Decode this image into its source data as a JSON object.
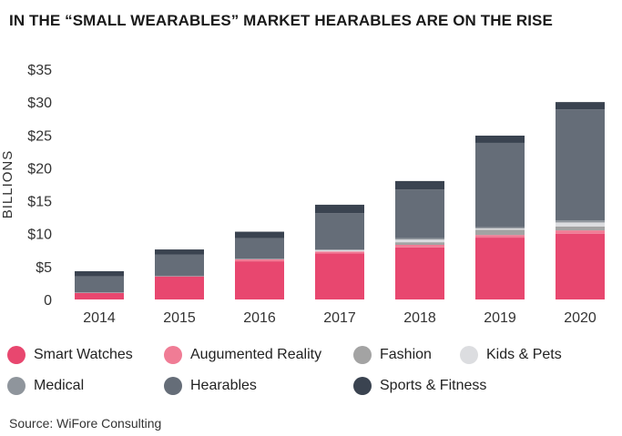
{
  "title": "IN THE “SMALL WEARABLES” MARKET HEARABLES ARE ON THE RISE",
  "source": "Source: WiFore Consulting",
  "chart_data": {
    "type": "bar",
    "stacked": true,
    "ylabel": "BILLIONS",
    "xlabel": "",
    "ylim": [
      0,
      35
    ],
    "yticks": [
      0,
      5,
      10,
      15,
      20,
      25,
      30,
      35
    ],
    "ytick_labels": [
      "0",
      "$5",
      "$10",
      "$15",
      "$20",
      "$25",
      "$30",
      "$35"
    ],
    "categories": [
      "2014",
      "2015",
      "2016",
      "2017",
      "2018",
      "2019",
      "2020"
    ],
    "grid": false,
    "legend_position": "bottom",
    "series": [
      {
        "name": "Smart Watches",
        "color": "#e8476f",
        "values": [
          1.0,
          3.5,
          5.8,
          7.0,
          7.9,
          9.4,
          10.0
        ]
      },
      {
        "name": "Augumented Reality",
        "color": "#f07c95",
        "values": [
          0.0,
          0.0,
          0.3,
          0.3,
          0.4,
          0.4,
          0.5
        ]
      },
      {
        "name": "Fashion",
        "color": "#a3a3a3",
        "values": [
          0.0,
          0.0,
          0.0,
          0.0,
          0.4,
          0.8,
          0.6
        ]
      },
      {
        "name": "Kids & Pets",
        "color": "#dcdde0",
        "values": [
          0.0,
          0.0,
          0.0,
          0.2,
          0.4,
          0.2,
          0.6
        ]
      },
      {
        "name": "Medical",
        "color": "#8f959c",
        "values": [
          0.1,
          0.1,
          0.1,
          0.1,
          0.2,
          0.2,
          0.3
        ]
      },
      {
        "name": "Hearables",
        "color": "#656d78",
        "values": [
          2.4,
          3.2,
          3.1,
          5.5,
          7.4,
          12.8,
          16.9
        ]
      },
      {
        "name": "Sports & Fitness",
        "color": "#3a4350",
        "values": [
          0.8,
          0.8,
          1.0,
          1.3,
          1.3,
          1.1,
          1.1
        ]
      }
    ]
  }
}
